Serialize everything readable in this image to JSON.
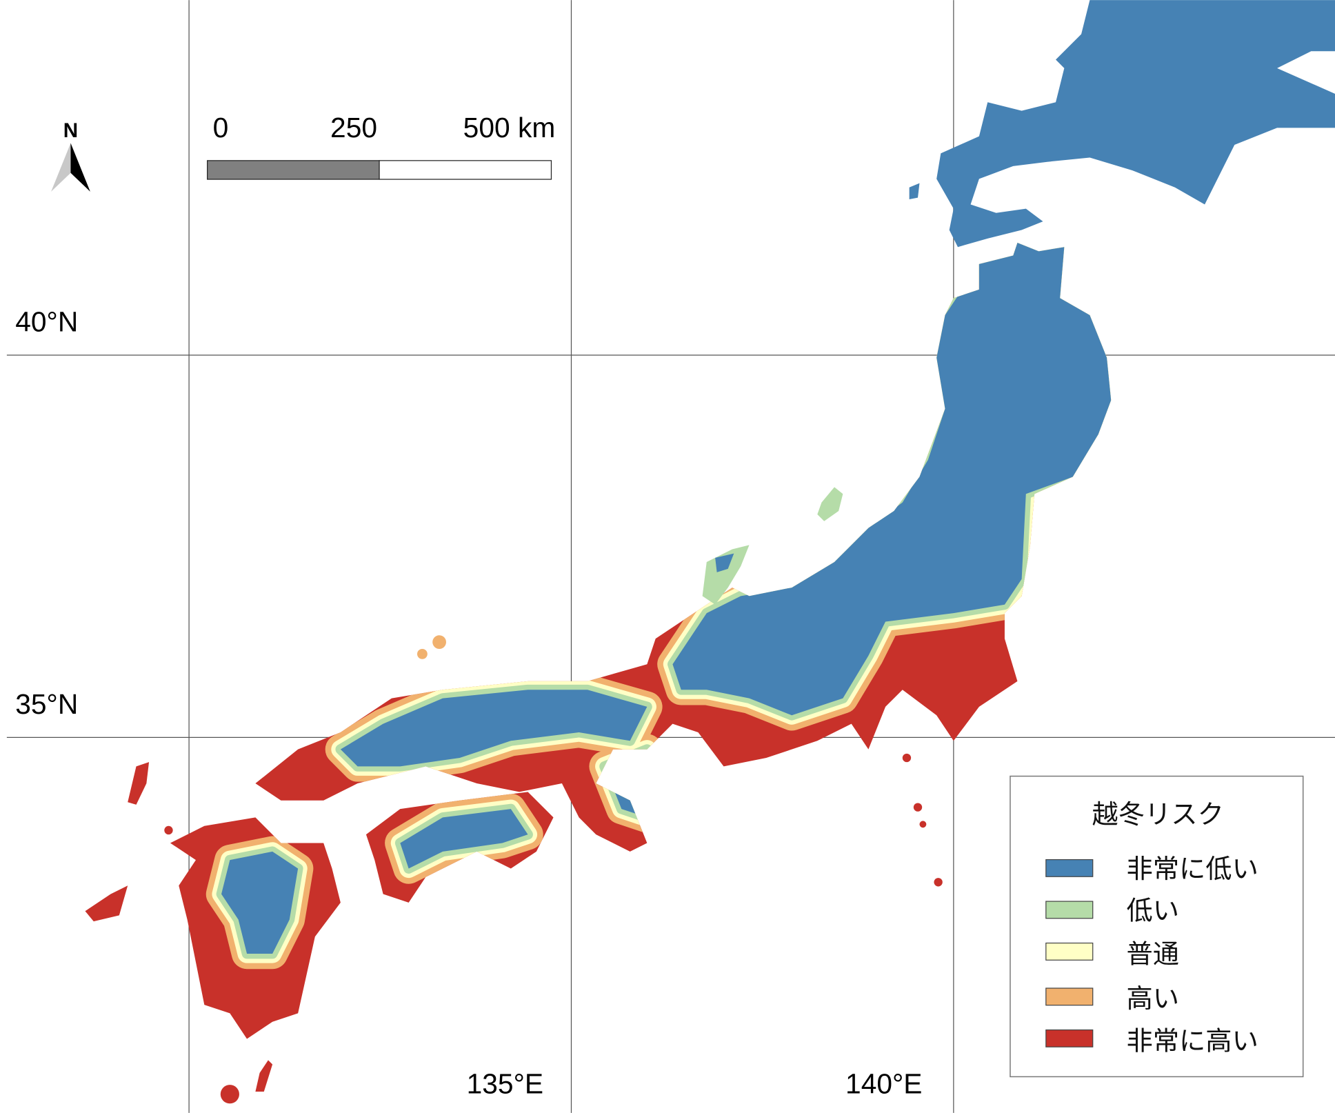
{
  "map": {
    "north_label": "N",
    "scale_bar": {
      "labels": [
        "0",
        "250",
        "500 km"
      ],
      "fill_colors": [
        "#808080",
        "#ffffff"
      ]
    },
    "latitude_labels": [
      "40°N",
      "35°N"
    ],
    "longitude_labels": [
      "135°E",
      "140°E"
    ]
  },
  "legend": {
    "title": "越冬リスク",
    "items": [
      {
        "label": "非常に低い",
        "color": "#4682b4"
      },
      {
        "label": "低い",
        "color": "#b5dca8"
      },
      {
        "label": "普通",
        "color": "#ffffc6"
      },
      {
        "label": "高い",
        "color": "#f1b16e"
      },
      {
        "label": "非常に高い",
        "color": "#c8312a"
      }
    ]
  }
}
